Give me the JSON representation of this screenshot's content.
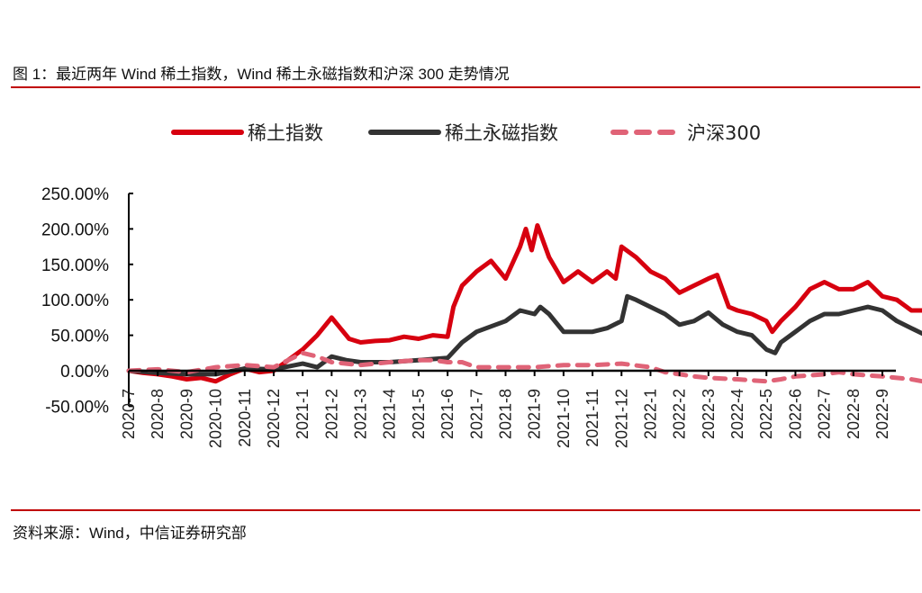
{
  "title": "图 1：最近两年 Wind 稀土指数，Wind 稀土永磁指数和沪深 300 走势情况",
  "source": "资料来源：Wind，中信证券研究部",
  "chart_data": {
    "type": "line",
    "title": "",
    "xlabel": "",
    "ylabel": "",
    "ylim": [
      -50,
      250
    ],
    "yticks": [
      "250.00%",
      "200.00%",
      "150.00%",
      "100.00%",
      "50.00%",
      "0.00%",
      "-50.00%"
    ],
    "ytick_values": [
      250,
      200,
      150,
      100,
      50,
      0,
      -50
    ],
    "categories": [
      "2020-7",
      "2020-8",
      "2020-9",
      "2020-10",
      "2020-11",
      "2020-12",
      "2021-1",
      "2021-2",
      "2021-3",
      "2021-4",
      "2021-5",
      "2021-6",
      "2021-7",
      "2021-8",
      "2021-9",
      "2021-10",
      "2021-11",
      "2021-12",
      "2022-1",
      "2022-2",
      "2022-3",
      "2022-4",
      "2022-5",
      "2022-6",
      "2022-7",
      "2022-8",
      "2022-9"
    ],
    "legend_position": "top",
    "series": [
      {
        "name": "稀土指数",
        "color": "#d7000f",
        "style": "solid",
        "x": [
          0,
          0.5,
          1,
          1.5,
          2,
          2.5,
          3,
          3.5,
          4,
          4.5,
          5,
          5.5,
          6,
          6.5,
          7,
          7.3,
          7.6,
          8,
          8.5,
          9,
          9.5,
          10,
          10.5,
          11,
          11.2,
          11.5,
          12,
          12.5,
          13,
          13.5,
          13.7,
          13.9,
          14.1,
          14.5,
          15,
          15.5,
          16,
          16.5,
          16.8,
          17,
          17.5,
          18,
          18.5,
          19,
          19.5,
          20,
          20.3,
          20.7,
          21,
          21.5,
          22,
          22.2,
          22.5,
          23,
          23.5,
          24,
          24.5,
          25,
          25.5,
          26,
          26.5,
          27,
          27.5,
          27.8
        ],
        "y": [
          0,
          -3,
          -5,
          -8,
          -12,
          -10,
          -15,
          -5,
          3,
          -2,
          0,
          15,
          30,
          50,
          75,
          60,
          45,
          40,
          42,
          43,
          48,
          45,
          50,
          48,
          90,
          120,
          140,
          155,
          130,
          175,
          200,
          170,
          205,
          160,
          125,
          140,
          125,
          140,
          130,
          175,
          160,
          140,
          130,
          110,
          120,
          130,
          135,
          90,
          85,
          80,
          70,
          55,
          70,
          90,
          115,
          125,
          115,
          115,
          125,
          105,
          100,
          85,
          85,
          92
        ]
      },
      {
        "name": "稀土永磁指数",
        "color": "#333333",
        "style": "solid",
        "x": [
          0,
          1,
          2,
          3,
          4,
          5,
          6,
          6.5,
          7,
          7.5,
          8,
          9,
          10,
          11,
          11.5,
          12,
          13,
          13.5,
          14,
          14.2,
          14.5,
          15,
          15.5,
          16,
          16.5,
          17,
          17.2,
          17.5,
          18,
          18.5,
          19,
          19.5,
          20,
          20.5,
          21,
          21.5,
          22,
          22.3,
          22.5,
          23,
          23.5,
          24,
          24.5,
          25,
          25.5,
          26,
          26.5,
          27,
          27.5,
          27.8
        ],
        "y": [
          0,
          -3,
          -5,
          -5,
          3,
          2,
          10,
          5,
          20,
          15,
          12,
          12,
          15,
          18,
          40,
          55,
          70,
          85,
          80,
          90,
          80,
          55,
          55,
          55,
          60,
          70,
          105,
          100,
          90,
          80,
          65,
          70,
          82,
          65,
          55,
          50,
          30,
          25,
          40,
          55,
          70,
          80,
          80,
          85,
          90,
          85,
          70,
          60,
          50,
          55
        ]
      },
      {
        "name": "沪深300",
        "color": "#e06377",
        "style": "dashed",
        "x": [
          0,
          1,
          2,
          3,
          4,
          5,
          5.5,
          6,
          6.5,
          7,
          7.5,
          8,
          9,
          10,
          10.5,
          11,
          11.5,
          12,
          13,
          14,
          15,
          16,
          17,
          18,
          18.5,
          19,
          19.5,
          20,
          21,
          22,
          22.5,
          23,
          24,
          24.5,
          25,
          26,
          27,
          27.8
        ],
        "y": [
          0,
          2,
          -2,
          5,
          8,
          5,
          15,
          25,
          20,
          12,
          10,
          8,
          12,
          15,
          15,
          12,
          12,
          5,
          5,
          5,
          8,
          8,
          10,
          5,
          -2,
          -5,
          -8,
          -10,
          -12,
          -15,
          -12,
          -8,
          -5,
          -2,
          -5,
          -8,
          -12,
          -18
        ]
      }
    ]
  }
}
